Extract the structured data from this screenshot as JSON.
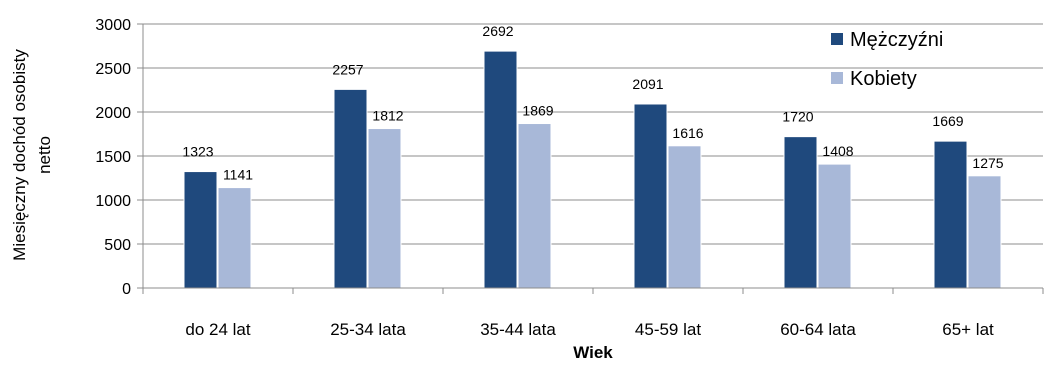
{
  "chart_data": {
    "type": "bar",
    "categories": [
      "do 24 lat",
      "25-34 lata",
      "35-44 lata",
      "45-59 lat",
      "60-64 lata",
      "65+ lat"
    ],
    "series": [
      {
        "name": "Mężczyźni",
        "values": [
          1323,
          2257,
          2692,
          2091,
          1720,
          1669
        ],
        "color": "#1f497d"
      },
      {
        "name": "Kobiety",
        "values": [
          1141,
          1812,
          1869,
          1616,
          1408,
          1275
        ],
        "color": "#a8b8d8"
      }
    ],
    "xlabel": "Wiek",
    "ylabel_lines": [
      "Miesięczny dochód osobisty",
      "netto"
    ],
    "ylim": [
      0,
      3000
    ],
    "yticks": [
      0,
      500,
      1000,
      1500,
      2000,
      2500,
      3000
    ],
    "grid": true,
    "legend_position": "top-right"
  }
}
